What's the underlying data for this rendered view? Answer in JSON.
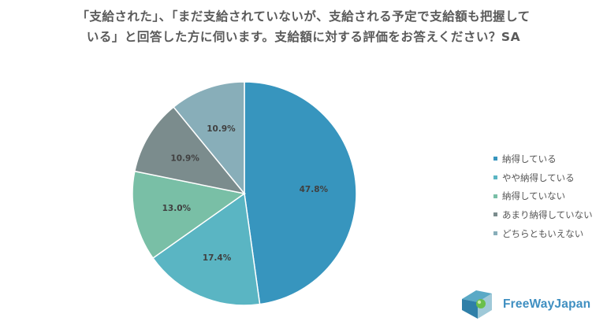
{
  "title": {
    "line1": "「支給された」、「まだ支給されていないが、支給される予定で支給額も把握して",
    "line2": "いる」と回答した方に伺います。支給額に対する評価をお答えください？SA"
  },
  "chart_data": {
    "type": "pie",
    "categories": [
      "納得している",
      "やや納得している",
      "納得していない",
      "あまり納得していない",
      "どちらともいえない"
    ],
    "values": [
      47.8,
      17.4,
      13.0,
      10.9,
      10.9
    ],
    "labels": [
      "47.8%",
      "17.4%",
      "13.0%",
      "10.9%",
      "10.9%"
    ],
    "colors": [
      "#3795be",
      "#5ab5c3",
      "#79bfa6",
      "#7b8c8d",
      "#88aeb9"
    ],
    "start": "12 o'clock",
    "direction": "clockwise",
    "legend_position": "right"
  },
  "logo": {
    "text": "FreeWayJapan"
  }
}
